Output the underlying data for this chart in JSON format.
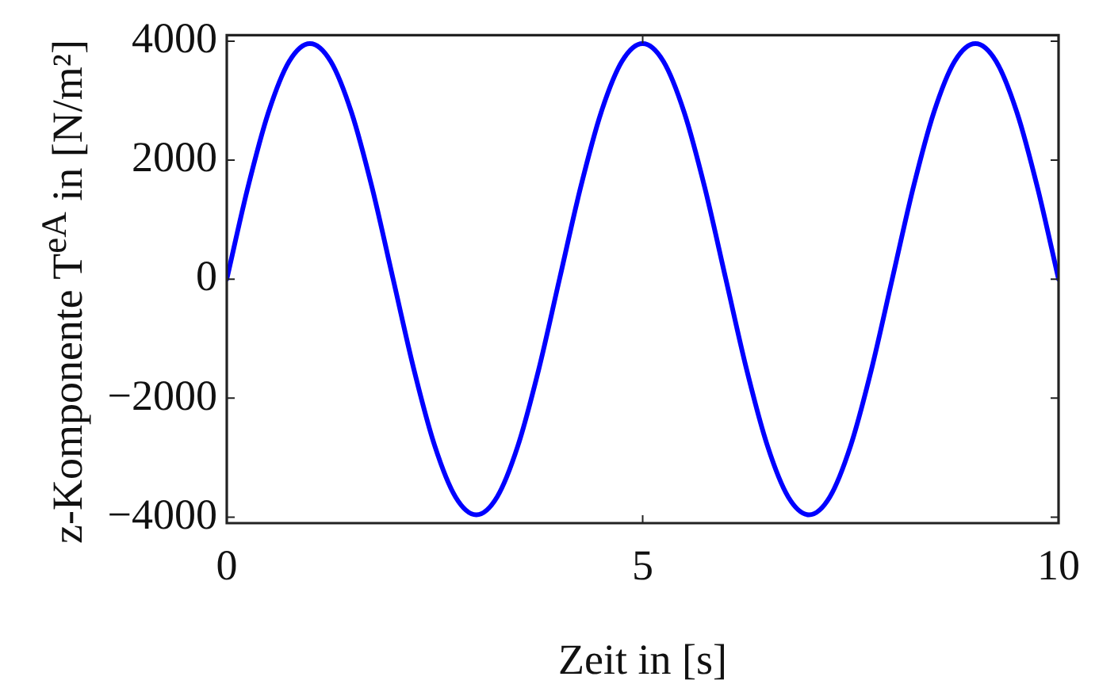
{
  "chart_data": {
    "type": "line",
    "xlabel": "Zeit in [s]",
    "ylabel": "z-Komponente T$^{eA}$ in [N/m²]",
    "x": [
      0,
      0.25,
      0.5,
      0.75,
      1,
      1.25,
      1.5,
      1.75,
      2,
      2.25,
      2.5,
      2.75,
      3,
      3.25,
      3.5,
      3.75,
      4,
      4.25,
      4.5,
      4.75,
      5,
      5.25,
      5.5,
      5.75,
      6,
      6.25,
      6.5,
      6.75,
      7,
      7.25,
      7.5,
      7.75,
      8,
      8.25,
      8.5,
      8.75,
      9,
      9.25,
      9.5,
      9.75,
      10
    ],
    "series": [
      {
        "color": "#0000ff",
        "values": [
          0,
          1520,
          2800,
          3660,
          3960,
          3660,
          2800,
          1520,
          0,
          -1520,
          -2800,
          -3660,
          -3960,
          -3660,
          -2800,
          -1520,
          0,
          1520,
          2800,
          3660,
          3960,
          3660,
          2800,
          1520,
          0,
          -1520,
          -2800,
          -3660,
          -3960,
          -3660,
          -2800,
          -1520,
          0,
          1520,
          2800,
          3660,
          3960,
          3660,
          2800,
          1520,
          0
        ]
      }
    ],
    "xlim": [
      0,
      10
    ],
    "ylim": [
      -4100,
      4100
    ],
    "xticks": [
      0,
      5,
      10
    ],
    "yticks": [
      -4000,
      -2000,
      0,
      2000,
      4000
    ],
    "grid": false,
    "legend": false,
    "marker": "none",
    "line_style": "solid"
  }
}
